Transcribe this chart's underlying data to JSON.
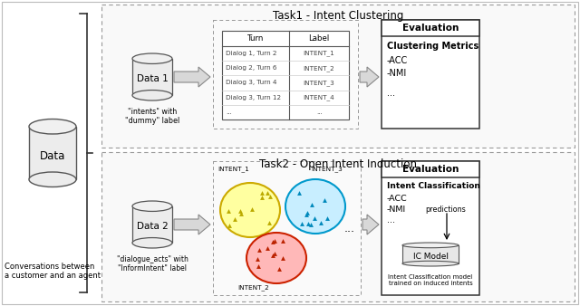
{
  "bg_color": "#ffffff",
  "task1_title": "Task1 - Intent Clustering",
  "task2_title": "Task2 - Open Intent Induction",
  "data_label": "Data",
  "data1_label": "Data 1",
  "data2_label": "Data 2",
  "data1_sublabel": "\"intents\" with\n\"dummy\" label",
  "data2_sublabel": "\"dialogue_acts\" with\n\"InformIntent\" label",
  "bottom_label": "Conversations between\na customer and an agent",
  "table_headers": [
    "Turn",
    "Label"
  ],
  "table_rows": [
    [
      "Dialog 1, Turn 2",
      "INTENT_1"
    ],
    [
      "Dialog 2, Turn 6",
      "INTENT_2"
    ],
    [
      "Dialog 3, Turn 4",
      "INTENT_3"
    ],
    [
      "Dialog 3, Turn 12",
      "INTENT_4"
    ],
    [
      "...",
      "..."
    ]
  ],
  "eval1_title": "Evaluation",
  "eval2_title": "Evaluation",
  "ic_model_label": "IC Model",
  "ic_model_sublabel": "Intent Classification model\ntrained on induced intents"
}
